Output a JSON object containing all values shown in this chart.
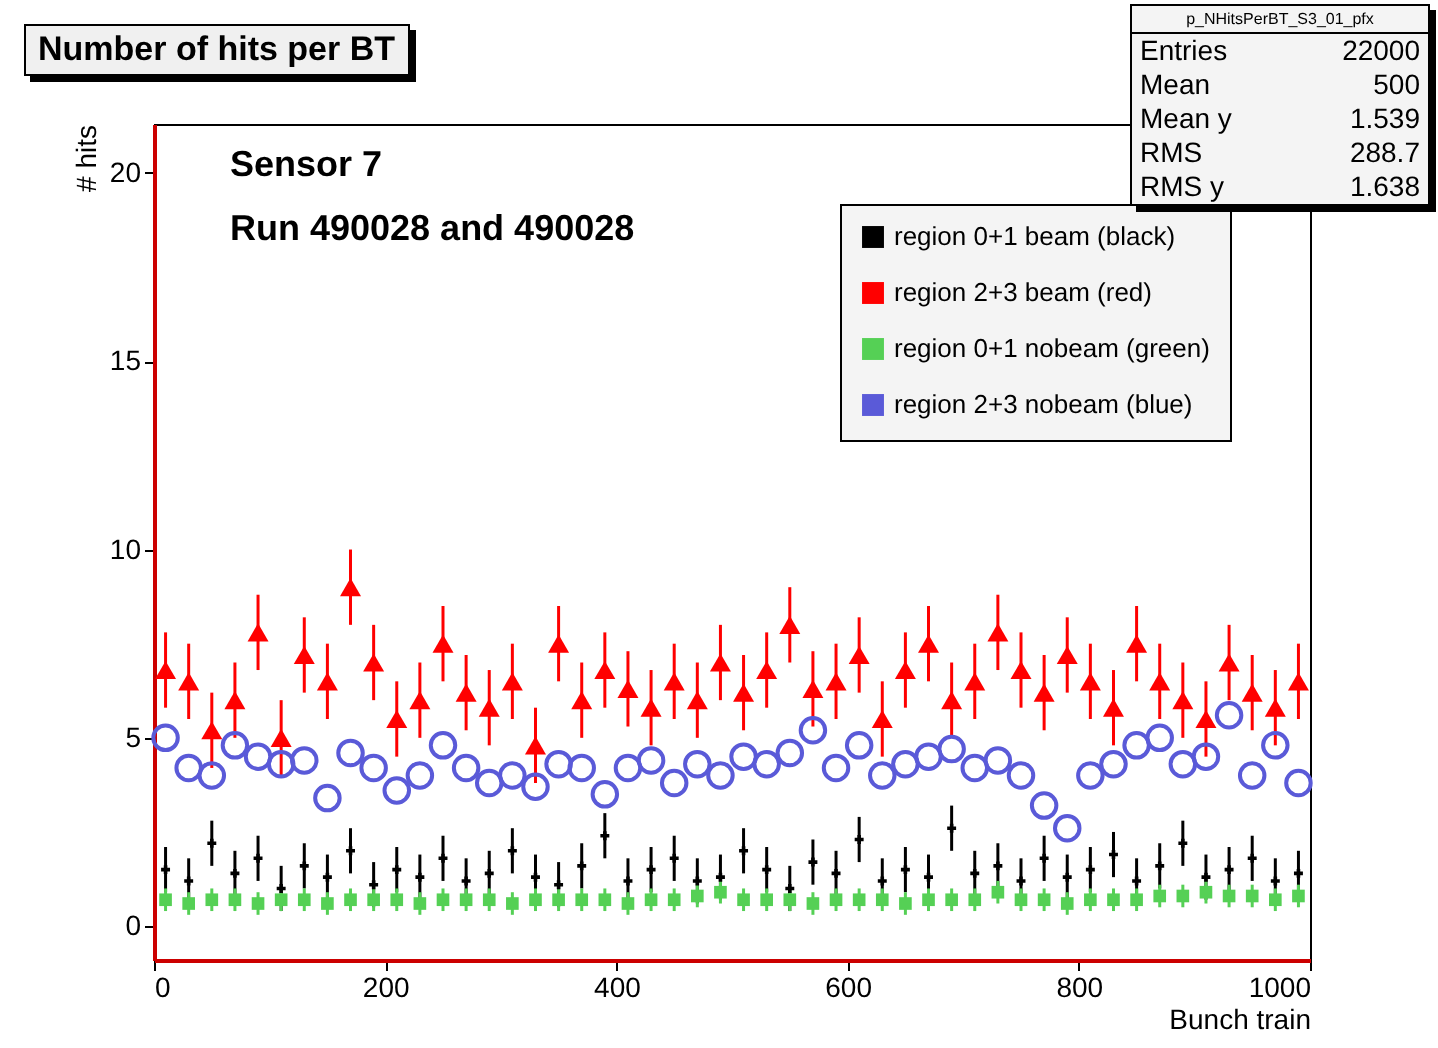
{
  "chart_data": {
    "type": "scatter",
    "title": "Number of hits per BT",
    "xlabel": "Bunch train",
    "ylabel": "# hits",
    "annotations": [
      "Sensor 7",
      "Run 490028 and 490028",
      "p_NHitsPerBT_S3_01_pfx",
      "Entries 22000",
      "Mean 500",
      "Mean y 1.539",
      "RMS 288.7",
      "RMS y 1.638"
    ],
    "x": [
      10,
      30,
      50,
      70,
      90,
      110,
      130,
      150,
      170,
      190,
      210,
      230,
      250,
      270,
      290,
      310,
      330,
      350,
      370,
      390,
      410,
      430,
      450,
      470,
      490,
      510,
      530,
      550,
      570,
      590,
      610,
      630,
      650,
      670,
      690,
      710,
      730,
      750,
      770,
      790,
      810,
      830,
      850,
      870,
      890,
      910,
      930,
      950,
      970,
      990
    ],
    "xlim": [
      0,
      1000
    ],
    "xticks": [
      0,
      200,
      400,
      600,
      800,
      1000
    ],
    "ylim": [
      -0.9,
      21.3
    ],
    "yticks": [
      0,
      5,
      10,
      15,
      20
    ],
    "grid": false,
    "legend": "top right",
    "series": [
      {
        "name": "region 0+1 beam (black)",
        "color": "#000000",
        "marker": "cross",
        "values": [
          1.5,
          1.2,
          2.2,
          1.4,
          1.8,
          1.0,
          1.6,
          1.3,
          2.0,
          1.1,
          1.5,
          1.3,
          1.8,
          1.2,
          1.4,
          2.0,
          1.3,
          1.1,
          1.6,
          2.4,
          1.2,
          1.5,
          1.8,
          1.2,
          1.3,
          2.0,
          1.5,
          1.0,
          1.7,
          1.4,
          2.3,
          1.2,
          1.5,
          1.3,
          2.6,
          1.4,
          1.6,
          1.2,
          1.8,
          1.3,
          1.5,
          1.9,
          1.2,
          1.6,
          2.2,
          1.3,
          1.5,
          1.8,
          1.2,
          1.4
        ],
        "errors": [
          0.6,
          0.6,
          0.6,
          0.6,
          0.6,
          0.6,
          0.6,
          0.6,
          0.6,
          0.6,
          0.6,
          0.6,
          0.6,
          0.6,
          0.6,
          0.6,
          0.6,
          0.6,
          0.6,
          0.6,
          0.6,
          0.6,
          0.6,
          0.6,
          0.6,
          0.6,
          0.6,
          0.6,
          0.6,
          0.6,
          0.6,
          0.6,
          0.6,
          0.6,
          0.6,
          0.6,
          0.6,
          0.6,
          0.6,
          0.6,
          0.6,
          0.6,
          0.6,
          0.6,
          0.6,
          0.6,
          0.6,
          0.6,
          0.6,
          0.6
        ]
      },
      {
        "name": "region 2+3 beam (red)",
        "color": "#ff0000",
        "marker": "triangle",
        "values": [
          6.8,
          6.5,
          5.2,
          6.0,
          7.8,
          5.0,
          7.2,
          6.5,
          9.0,
          7.0,
          5.5,
          6.0,
          7.5,
          6.2,
          5.8,
          6.5,
          4.8,
          7.5,
          6.0,
          6.8,
          6.3,
          5.8,
          6.5,
          6.0,
          7.0,
          6.2,
          6.8,
          8.0,
          6.3,
          6.5,
          7.2,
          5.5,
          6.8,
          7.5,
          6.0,
          6.5,
          7.8,
          6.8,
          6.2,
          7.2,
          6.5,
          5.8,
          7.5,
          6.5,
          6.0,
          5.5,
          7.0,
          6.2,
          5.8,
          6.5
        ],
        "errors": [
          1,
          1,
          1,
          1,
          1,
          1,
          1,
          1,
          1,
          1,
          1,
          1,
          1,
          1,
          1,
          1,
          1,
          1,
          1,
          1,
          1,
          1,
          1,
          1,
          1,
          1,
          1,
          1,
          1,
          1,
          1,
          1,
          1,
          1,
          1,
          1,
          1,
          1,
          1,
          1,
          1,
          1,
          1,
          1,
          1,
          1,
          1,
          1,
          1,
          1
        ]
      },
      {
        "name": "region 0+1 nobeam (green)",
        "color": "#55d055",
        "marker": "square",
        "values": [
          0.7,
          0.6,
          0.7,
          0.7,
          0.6,
          0.7,
          0.7,
          0.6,
          0.7,
          0.7,
          0.7,
          0.6,
          0.7,
          0.7,
          0.7,
          0.6,
          0.7,
          0.7,
          0.7,
          0.7,
          0.6,
          0.7,
          0.7,
          0.8,
          0.9,
          0.7,
          0.7,
          0.7,
          0.6,
          0.7,
          0.7,
          0.7,
          0.6,
          0.7,
          0.7,
          0.7,
          0.9,
          0.7,
          0.7,
          0.6,
          0.7,
          0.7,
          0.7,
          0.8,
          0.8,
          0.9,
          0.8,
          0.8,
          0.7,
          0.8
        ],
        "errors": [
          0.3,
          0.3,
          0.3,
          0.3,
          0.3,
          0.3,
          0.3,
          0.3,
          0.3,
          0.3,
          0.3,
          0.3,
          0.3,
          0.3,
          0.3,
          0.3,
          0.3,
          0.3,
          0.3,
          0.3,
          0.3,
          0.3,
          0.3,
          0.3,
          0.3,
          0.3,
          0.3,
          0.3,
          0.3,
          0.3,
          0.3,
          0.3,
          0.3,
          0.3,
          0.3,
          0.3,
          0.3,
          0.3,
          0.3,
          0.3,
          0.3,
          0.3,
          0.3,
          0.3,
          0.3,
          0.3,
          0.3,
          0.3,
          0.3,
          0.3
        ]
      },
      {
        "name": "region 2+3 nobeam (blue)",
        "color": "#5a5ad8",
        "marker": "circle",
        "values": [
          5.0,
          4.2,
          4.0,
          4.8,
          4.5,
          4.3,
          4.4,
          3.4,
          4.6,
          4.2,
          3.6,
          4.0,
          4.8,
          4.2,
          3.8,
          4.0,
          3.7,
          4.3,
          4.2,
          3.5,
          4.2,
          4.4,
          3.8,
          4.3,
          4.0,
          4.5,
          4.3,
          4.6,
          5.2,
          4.2,
          4.8,
          4.0,
          4.3,
          4.5,
          4.7,
          4.2,
          4.4,
          4.0,
          3.2,
          2.6,
          4.0,
          4.3,
          4.8,
          5.0,
          4.3,
          4.5,
          5.6,
          4.0,
          4.8,
          3.8
        ]
      }
    ]
  }
}
